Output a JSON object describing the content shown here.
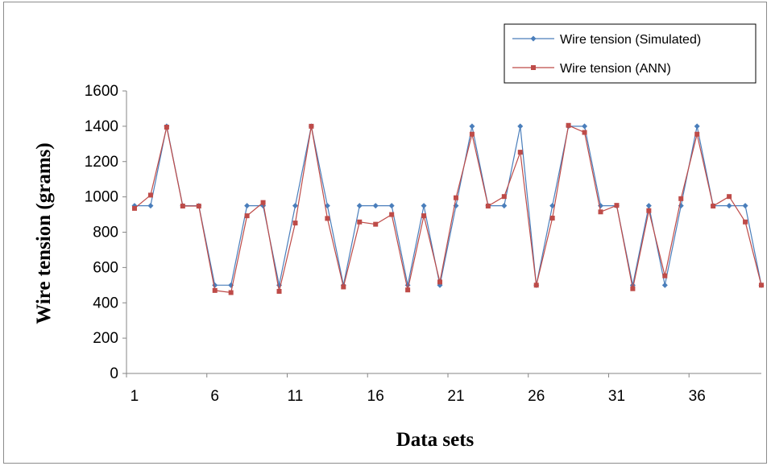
{
  "chart_data": {
    "type": "line",
    "title": "",
    "xlabel": "Data sets",
    "ylabel": "Wire tension (grams)",
    "x": [
      1,
      2,
      3,
      4,
      5,
      6,
      7,
      8,
      9,
      10,
      11,
      12,
      13,
      14,
      15,
      16,
      17,
      18,
      19,
      20,
      21,
      22,
      23,
      24,
      25,
      26,
      27,
      28,
      29,
      30,
      31,
      32,
      33,
      34,
      35,
      36,
      37,
      38,
      39,
      40
    ],
    "x_tick_labels": [
      "1",
      "6",
      "11",
      "16",
      "21",
      "26",
      "31",
      "36"
    ],
    "y_tick_labels": [
      "0",
      "200",
      "400",
      "600",
      "800",
      "1000",
      "1200",
      "1400",
      "1600"
    ],
    "ylim": [
      0,
      1600
    ],
    "xlim": [
      0.5,
      40
    ],
    "grid": false,
    "legend_position": "top-right",
    "series": [
      {
        "name": "Wire tension (Simulated)",
        "color": "#4a7ebb",
        "marker": "diamond",
        "values": [
          950,
          950,
          1400,
          950,
          950,
          500,
          500,
          950,
          950,
          500,
          950,
          1400,
          950,
          500,
          950,
          950,
          950,
          500,
          950,
          500,
          950,
          1400,
          950,
          950,
          1400,
          500,
          950,
          1400,
          1400,
          950,
          950,
          500,
          950,
          500,
          950,
          1400,
          950,
          950,
          950,
          500
        ]
      },
      {
        "name": "Wire tension (ANN)",
        "color": "#be4b48",
        "marker": "square",
        "values": [
          935,
          1010,
          1395,
          948,
          948,
          470,
          458,
          893,
          968,
          465,
          852,
          1400,
          878,
          490,
          858,
          845,
          900,
          473,
          893,
          518,
          995,
          1355,
          948,
          1002,
          1253,
          500,
          880,
          1405,
          1365,
          915,
          952,
          480,
          922,
          553,
          990,
          1355,
          948,
          1002,
          858,
          500
        ]
      }
    ]
  }
}
